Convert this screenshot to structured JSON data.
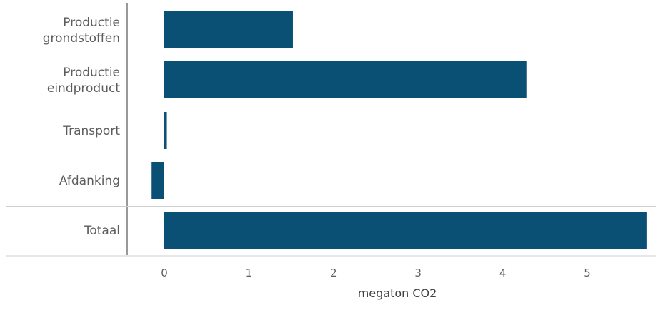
{
  "chart_data": {
    "type": "bar",
    "orientation": "horizontal",
    "categories": [
      [
        "Productie",
        "grondstoffen"
      ],
      [
        "Productie",
        "eindproduct"
      ],
      [
        "Transport"
      ],
      [
        "Afdanking"
      ],
      [
        "Totaal"
      ]
    ],
    "values": [
      1.52,
      4.28,
      0.03,
      -0.15,
      5.7
    ],
    "xlabel": "megaton CO2",
    "xlim": [
      -0.42,
      5.85
    ],
    "xticks": [
      "0",
      "1",
      "2",
      "3",
      "4",
      "5"
    ],
    "bar_color": "#0a5075",
    "grid": false,
    "separator_before_last": true
  }
}
